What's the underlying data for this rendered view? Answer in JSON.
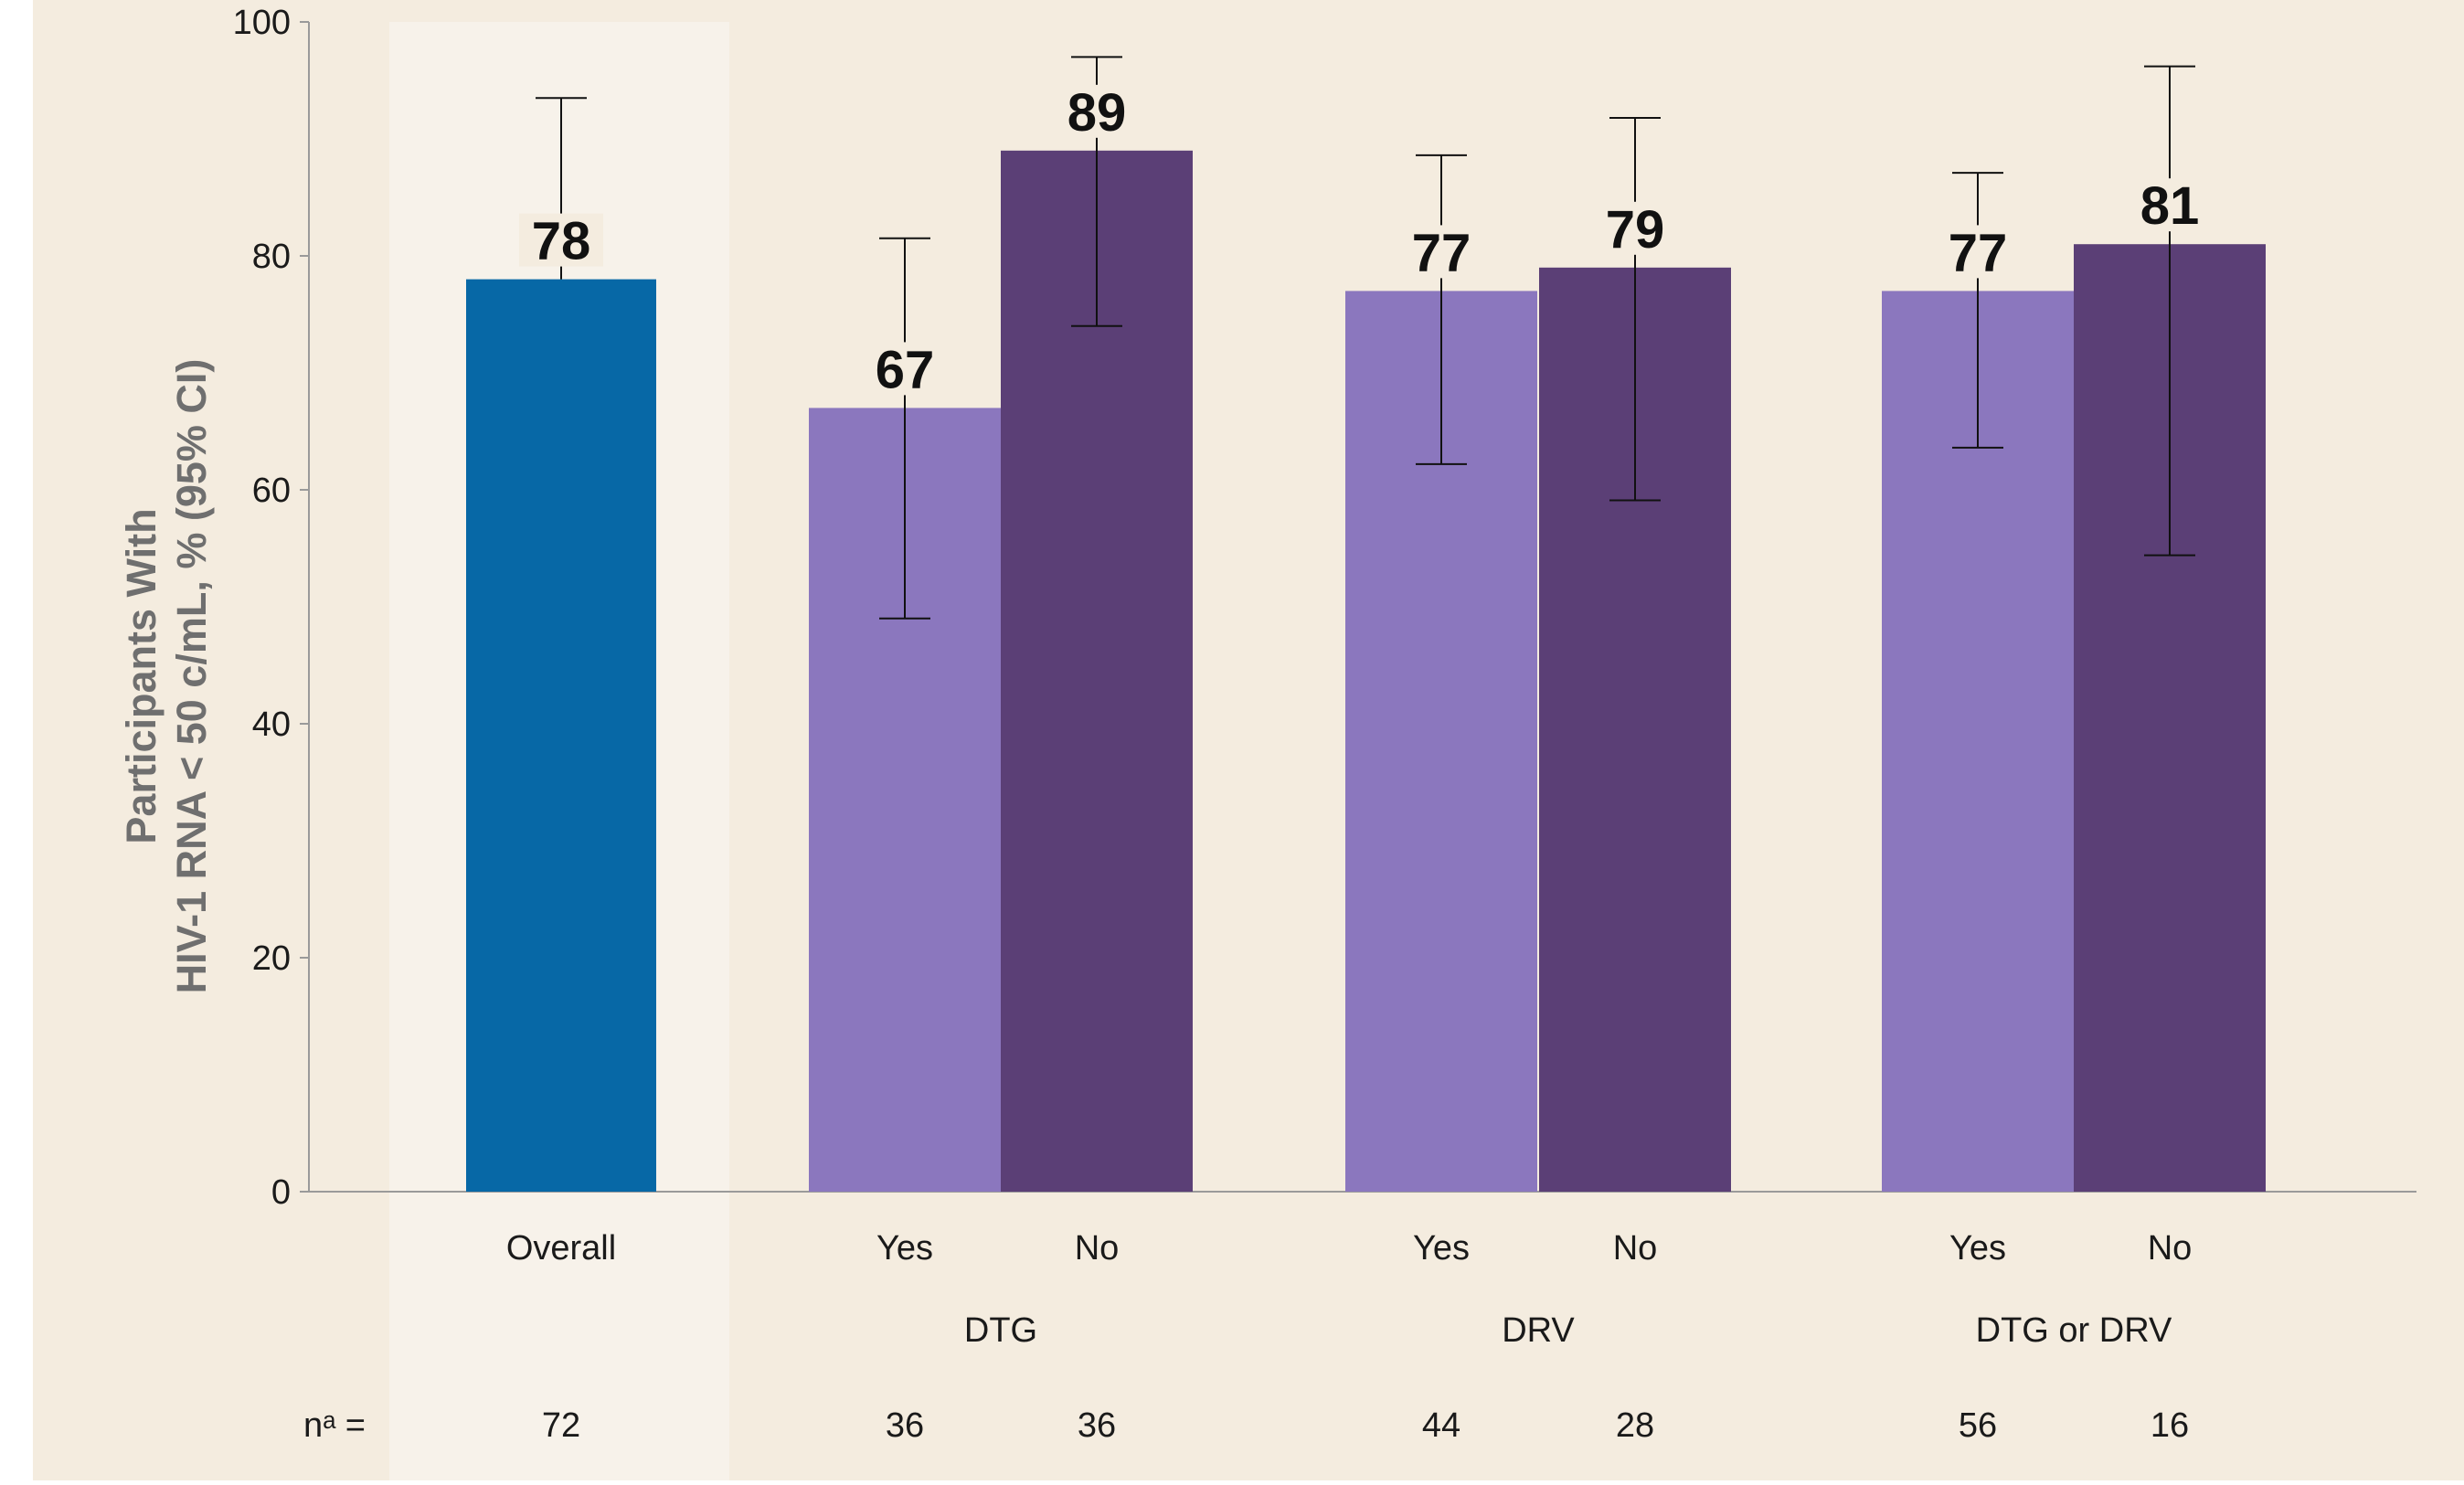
{
  "colors": {
    "background": "#f4ecdf",
    "overall_highlight": "#f7f2ea",
    "overall_bar": "#0768a6",
    "yes_bar": "#8b77be",
    "no_bar": "#5b3f76",
    "axis": "#9a9a9a",
    "error_bar": "#111111"
  },
  "chart_data": {
    "type": "bar",
    "ylabel_lines": [
      "Participants With",
      "HIV-1 RNA < 50 c/mL, % (95% CI)"
    ],
    "ylim": [
      0,
      100
    ],
    "yticks": [
      0,
      20,
      40,
      60,
      80,
      100
    ],
    "grid": false,
    "legend": "none",
    "n_prefix": "nᵃ =",
    "groups": [
      {
        "name": "",
        "bars": [
          {
            "label": "Overall",
            "value": 78,
            "ci": [
              78,
              93.5
            ],
            "n": "72",
            "kind": "overall"
          }
        ]
      },
      {
        "name": "DTG",
        "bars": [
          {
            "label": "Yes",
            "value": 67,
            "ci": [
              49,
              81.5
            ],
            "n": "36",
            "kind": "yes"
          },
          {
            "label": "No",
            "value": 89,
            "ci": [
              74,
              97
            ],
            "n": "36",
            "kind": "no"
          }
        ]
      },
      {
        "name": "DRV",
        "bars": [
          {
            "label": "Yes",
            "value": 77,
            "ci": [
              62.2,
              88.6
            ],
            "n": "44",
            "kind": "yes"
          },
          {
            "label": "No",
            "value": 79,
            "ci": [
              59.1,
              91.8
            ],
            "n": "28",
            "kind": "no"
          }
        ]
      },
      {
        "name": "DTG or DRV",
        "bars": [
          {
            "label": "Yes",
            "value": 77,
            "ci": [
              63.6,
              87.1
            ],
            "n": "56",
            "kind": "yes"
          },
          {
            "label": "No",
            "value": 81,
            "ci": [
              54.4,
              96.2
            ],
            "n": "16",
            "kind": "no"
          }
        ]
      }
    ]
  }
}
